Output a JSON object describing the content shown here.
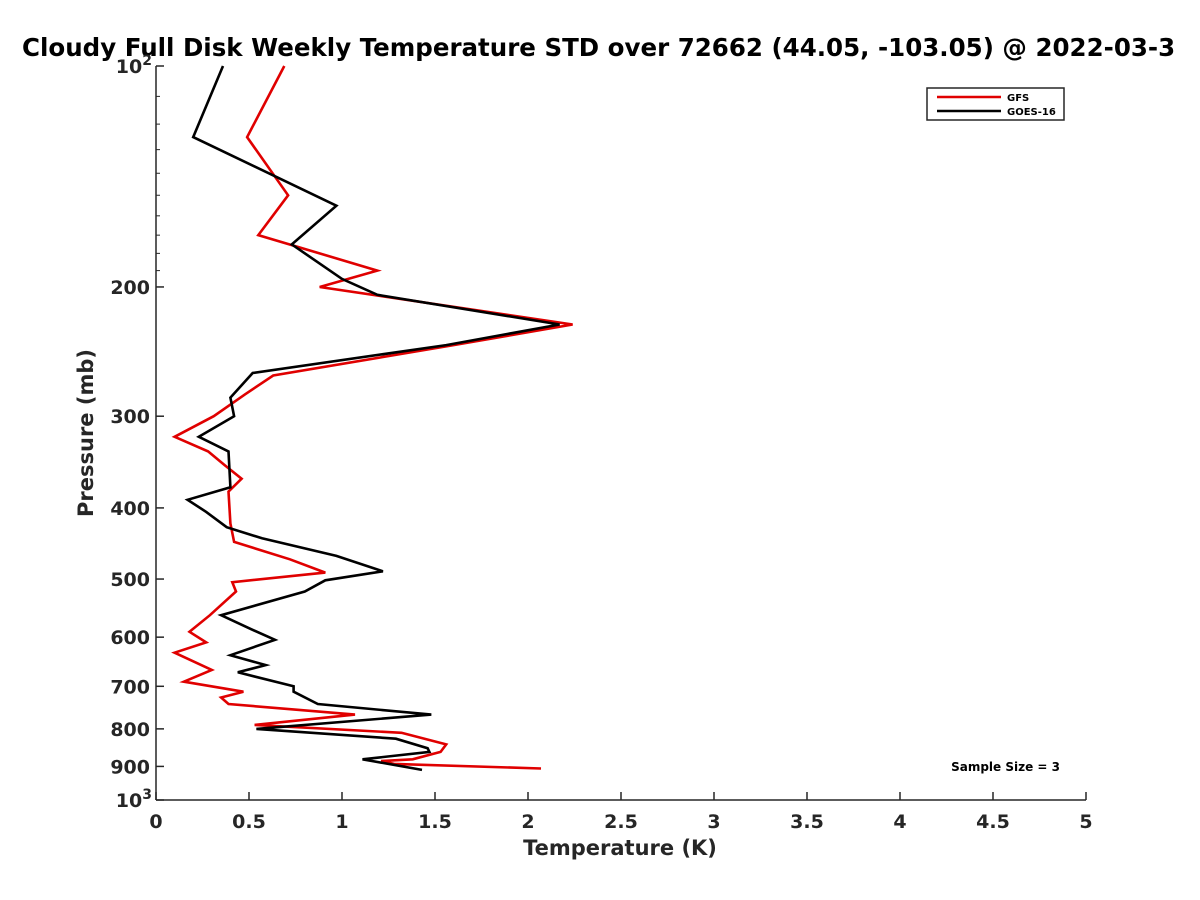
{
  "chart_data": {
    "type": "line",
    "title": "Cloudy Full Disk Weekly Temperature STD over 72662 (44.05, -103.05) @ 2022-03-3",
    "xlabel": "Temperature (K)",
    "ylabel": "Pressure (mb)",
    "xlim": [
      0,
      5
    ],
    "ylim": [
      100,
      1000
    ],
    "y_scale": "log",
    "y_direction": "reversed",
    "x_ticks": [
      "0",
      "0.5",
      "1",
      "1.5",
      "2",
      "2.5",
      "3",
      "3.5",
      "4",
      "4.5",
      "5"
    ],
    "x_tick_values": [
      0,
      0.5,
      1,
      1.5,
      2,
      2.5,
      3,
      3.5,
      4,
      4.5,
      5
    ],
    "y_ticks": [
      {
        "value": 100,
        "label": "10",
        "sup": "2"
      },
      {
        "value": 200,
        "label": "200",
        "sup": ""
      },
      {
        "value": 300,
        "label": "300",
        "sup": ""
      },
      {
        "value": 400,
        "label": "400",
        "sup": ""
      },
      {
        "value": 500,
        "label": "500",
        "sup": ""
      },
      {
        "value": 600,
        "label": "600",
        "sup": ""
      },
      {
        "value": 700,
        "label": "700",
        "sup": ""
      },
      {
        "value": 800,
        "label": "800",
        "sup": ""
      },
      {
        "value": 900,
        "label": "900",
        "sup": ""
      },
      {
        "value": 1000,
        "label": "10",
        "sup": "3"
      }
    ],
    "legend_position": "top-right",
    "grid": false,
    "annotation": "Sample Size = 3",
    "series": [
      {
        "name": "GFS",
        "color": "#e00000",
        "points": [
          [
            0.69,
            100
          ],
          [
            0.49,
            125
          ],
          [
            0.71,
            150
          ],
          [
            0.55,
            170
          ],
          [
            1.19,
            190
          ],
          [
            0.88,
            200
          ],
          [
            2.24,
            225
          ],
          [
            1.6,
            240
          ],
          [
            0.63,
            264
          ],
          [
            0.48,
            280
          ],
          [
            0.31,
            300
          ],
          [
            0.1,
            320
          ],
          [
            0.28,
            335
          ],
          [
            0.37,
            350
          ],
          [
            0.46,
            365
          ],
          [
            0.39,
            380
          ],
          [
            0.4,
            420
          ],
          [
            0.42,
            445
          ],
          [
            0.72,
            470
          ],
          [
            0.91,
            490
          ],
          [
            0.41,
            505
          ],
          [
            0.43,
            520
          ],
          [
            0.29,
            560
          ],
          [
            0.18,
            590
          ],
          [
            0.27,
            610
          ],
          [
            0.1,
            630
          ],
          [
            0.3,
            665
          ],
          [
            0.15,
            690
          ],
          [
            0.47,
            712
          ],
          [
            0.35,
            725
          ],
          [
            0.39,
            740
          ],
          [
            1.07,
            765
          ],
          [
            0.53,
            790
          ],
          [
            1.32,
            810
          ],
          [
            1.56,
            840
          ],
          [
            1.53,
            860
          ],
          [
            1.38,
            880
          ],
          [
            1.21,
            885
          ],
          [
            1.28,
            893
          ],
          [
            2.07,
            906
          ]
        ]
      },
      {
        "name": "GOES-16",
        "color": "#000000",
        "points": [
          [
            0.36,
            100
          ],
          [
            0.2,
            125
          ],
          [
            0.97,
            155
          ],
          [
            0.73,
            175
          ],
          [
            1.0,
            195
          ],
          [
            1.19,
            205
          ],
          [
            2.17,
            225
          ],
          [
            1.56,
            240
          ],
          [
            0.52,
            262
          ],
          [
            0.4,
            283
          ],
          [
            0.42,
            300
          ],
          [
            0.23,
            320
          ],
          [
            0.39,
            335
          ],
          [
            0.4,
            375
          ],
          [
            0.17,
            390
          ],
          [
            0.27,
            405
          ],
          [
            0.38,
            425
          ],
          [
            0.57,
            440
          ],
          [
            0.97,
            465
          ],
          [
            1.22,
            488
          ],
          [
            0.91,
            502
          ],
          [
            0.8,
            520
          ],
          [
            0.35,
            560
          ],
          [
            0.51,
            585
          ],
          [
            0.64,
            605
          ],
          [
            0.4,
            635
          ],
          [
            0.59,
            655
          ],
          [
            0.44,
            670
          ],
          [
            0.74,
            700
          ],
          [
            0.74,
            712
          ],
          [
            0.87,
            740
          ],
          [
            1.48,
            765
          ],
          [
            0.54,
            800
          ],
          [
            1.29,
            825
          ],
          [
            1.46,
            850
          ],
          [
            1.47,
            860
          ],
          [
            1.11,
            880
          ],
          [
            1.43,
            910
          ]
        ]
      }
    ]
  }
}
